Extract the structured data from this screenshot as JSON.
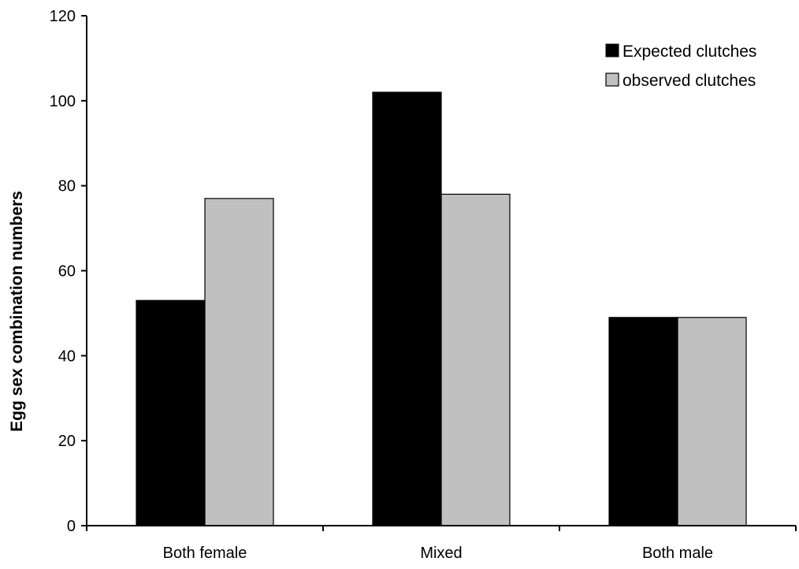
{
  "chart_data": {
    "type": "bar",
    "title": "",
    "xlabel": "",
    "ylabel": "Egg sex combination numbers",
    "categories": [
      "Both female",
      "Mixed",
      "Both male"
    ],
    "series": [
      {
        "name": "Expected clutches",
        "values": [
          53,
          102,
          49
        ],
        "color": "#000000"
      },
      {
        "name": "observed clutches",
        "values": [
          77,
          78,
          49
        ],
        "color": "#c0c0c0"
      }
    ],
    "ylim": [
      0,
      120
    ],
    "yticks": [
      0,
      20,
      40,
      60,
      80,
      100,
      120
    ],
    "grid": false,
    "legend_position": "top-right"
  }
}
